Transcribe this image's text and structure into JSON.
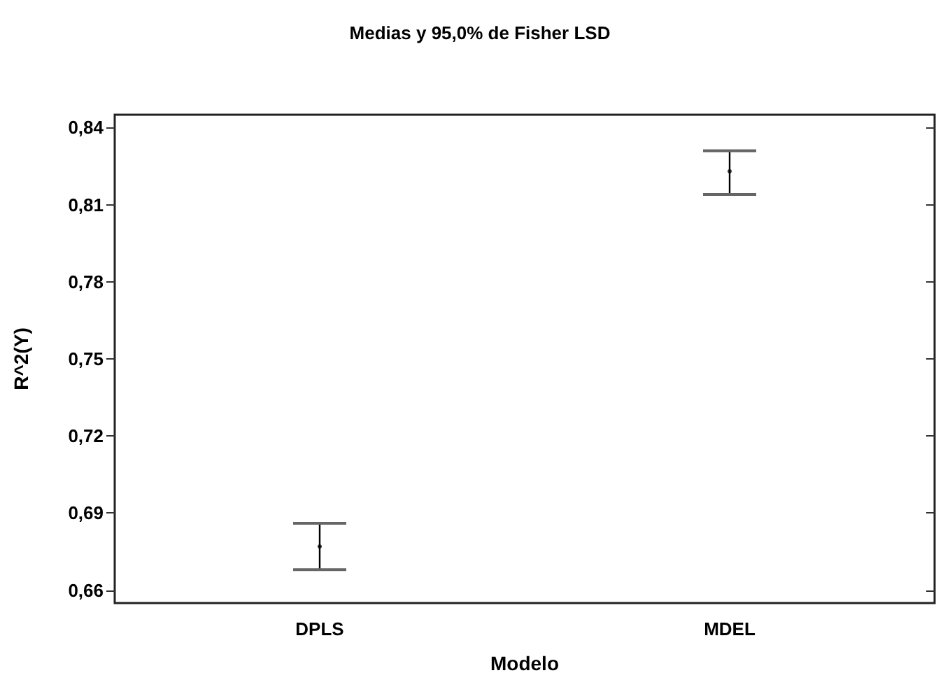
{
  "chart_data": {
    "type": "scatter",
    "title": "Medias y 95,0% de Fisher LSD",
    "xlabel": "Modelo",
    "ylabel": "R^2(Y)",
    "categories": [
      "DPLS",
      "MDEL"
    ],
    "series": [
      {
        "color": "#000000",
        "values": [
          0.677,
          0.823
        ],
        "errors": [
          [
            0.668,
            0.686
          ],
          [
            0.814,
            0.831
          ]
        ]
      }
    ],
    "ylim": [
      0.655,
      0.845
    ],
    "yticks": [
      {
        "value": 0.66,
        "label": "0,66"
      },
      {
        "value": 0.69,
        "label": "0,69"
      },
      {
        "value": 0.72,
        "label": "0,72"
      },
      {
        "value": 0.75,
        "label": "0,75"
      },
      {
        "value": 0.78,
        "label": "0,78"
      },
      {
        "value": 0.81,
        "label": "0,81"
      },
      {
        "value": 0.84,
        "label": "0,84"
      }
    ],
    "grid": false
  }
}
